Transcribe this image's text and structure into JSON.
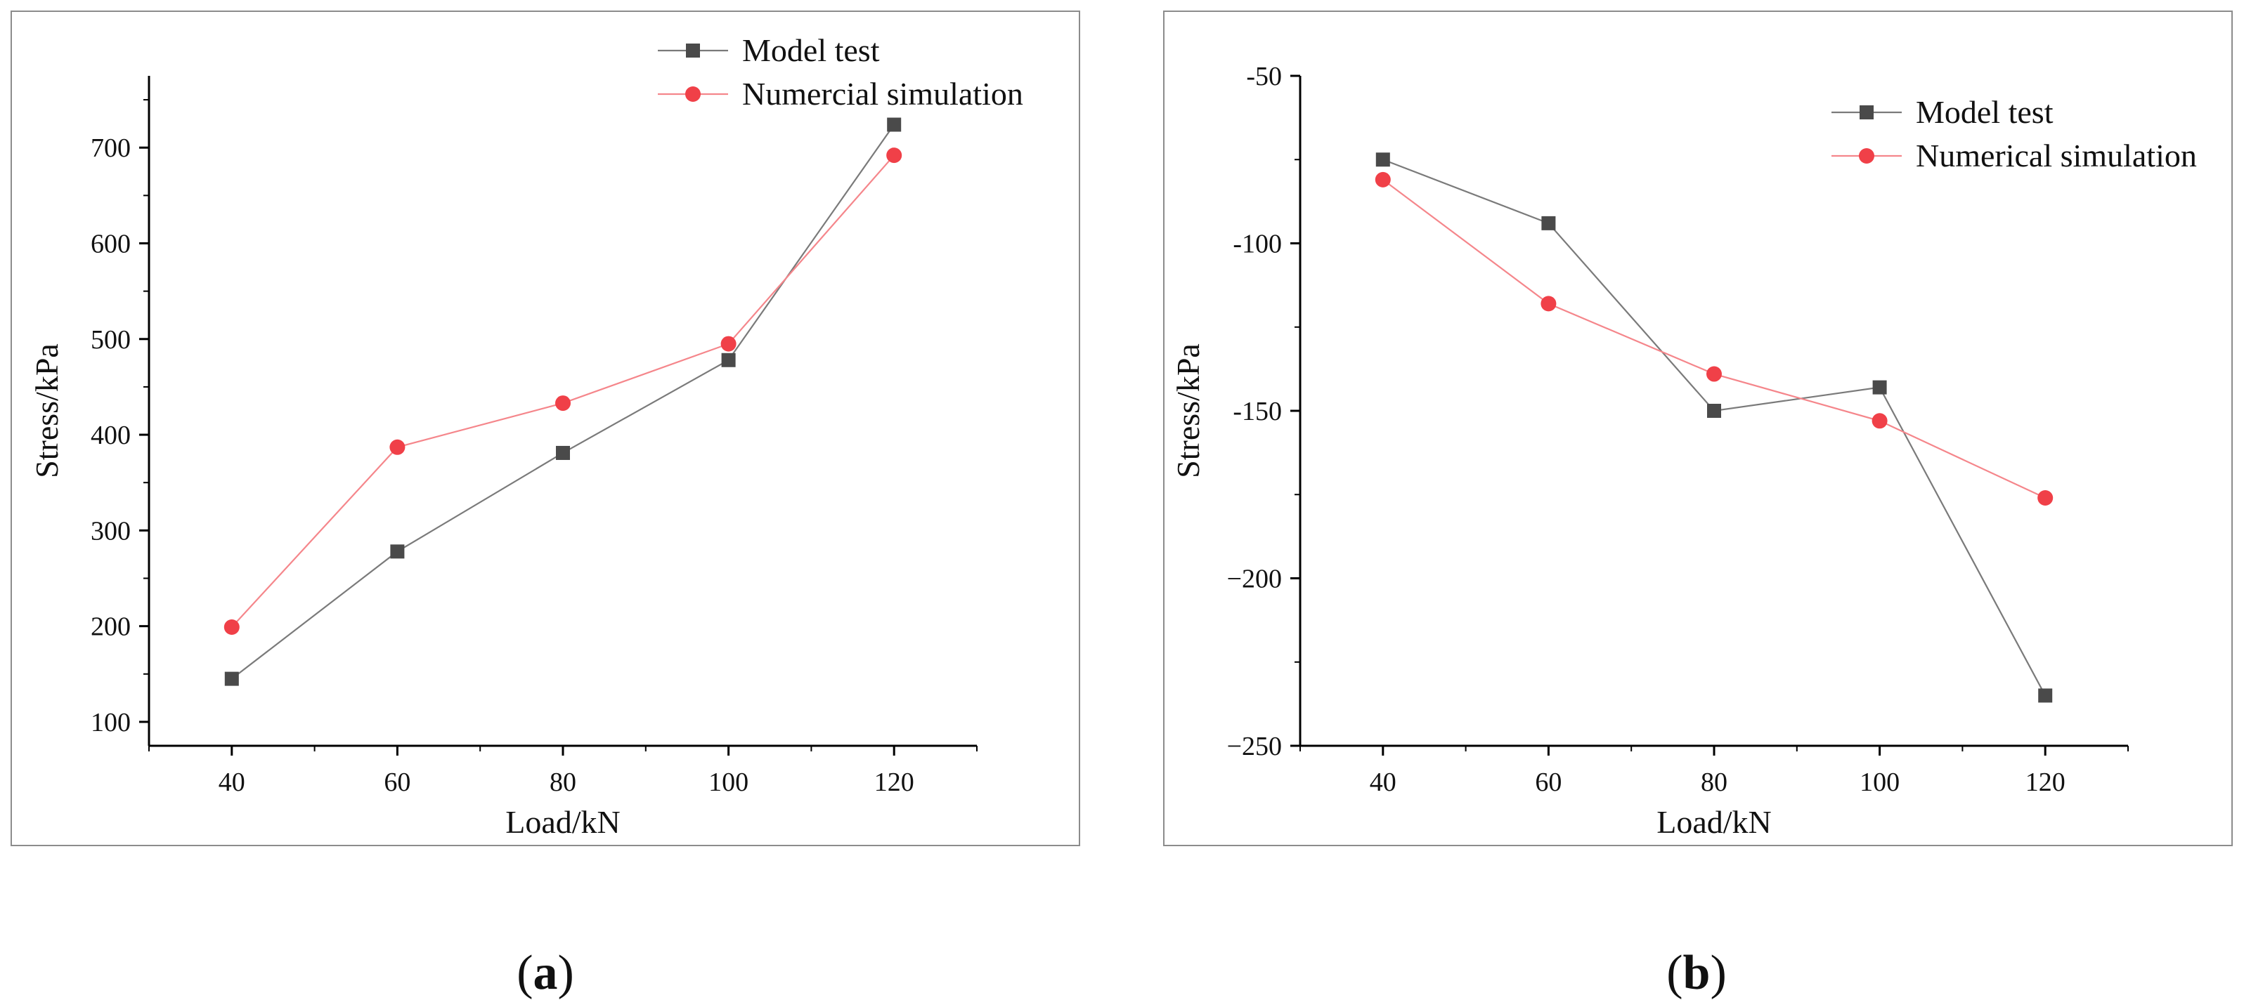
{
  "colors": {
    "model_test": "#4a4a4a",
    "model_test_line": "#7a7a7a",
    "numerical_simulation": "#f04048",
    "numerical_simulation_line": "#f5868b",
    "axis": "#000000",
    "frame": "#8c8c8c"
  },
  "chart_data": [
    {
      "type": "line",
      "caption": {
        "open": "(",
        "letter": "a",
        "close": ")"
      },
      "xlabel": "Load/kN",
      "ylabel": "Stress/kPa",
      "xlim": [
        30,
        130
      ],
      "ylim": [
        75,
        775
      ],
      "x_ticks": [
        40,
        60,
        80,
        100,
        120
      ],
      "y_ticks": [
        100,
        200,
        300,
        400,
        500,
        600,
        700
      ],
      "y_tick_labels": [
        "100",
        "200",
        "300",
        "400",
        "500",
        "600",
        "700"
      ],
      "legend_position": "top-right",
      "series": [
        {
          "name": "Model test",
          "marker": "square",
          "x": [
            40,
            60,
            80,
            100,
            120
          ],
          "y": [
            145,
            278,
            381,
            478,
            724
          ]
        },
        {
          "name": "Numercial simulation",
          "marker": "circle",
          "x": [
            40,
            60,
            80,
            100,
            120
          ],
          "y": [
            199,
            387,
            433,
            495,
            692
          ]
        }
      ]
    },
    {
      "type": "line",
      "caption": {
        "open": "(",
        "letter": "b",
        "close": ")"
      },
      "xlabel": "Load/kN",
      "ylabel": "Stress/kPa",
      "xlim": [
        30,
        130
      ],
      "ylim": [
        -250,
        -50
      ],
      "x_ticks": [
        40,
        60,
        80,
        100,
        120
      ],
      "y_ticks": [
        -50,
        -100,
        -150,
        -200,
        -250
      ],
      "y_tick_labels": [
        "-50",
        "-100",
        "-150",
        "−200",
        "−250"
      ],
      "legend_position": "top-right",
      "series": [
        {
          "name": "Model test",
          "marker": "square",
          "x": [
            40,
            60,
            80,
            100,
            120
          ],
          "y": [
            -75,
            -94,
            -150,
            -143,
            -235
          ]
        },
        {
          "name": "Numerical simulation",
          "marker": "circle",
          "x": [
            40,
            60,
            80,
            100,
            120
          ],
          "y": [
            -81,
            -118,
            -139,
            -153,
            -176
          ]
        }
      ]
    }
  ]
}
